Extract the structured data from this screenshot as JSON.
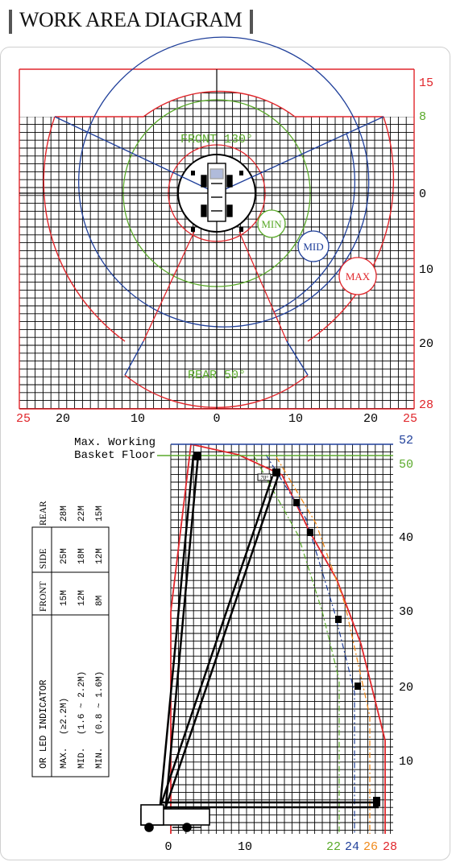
{
  "title": "WORK AREA DIAGRAM",
  "plan": {
    "right_scale": [
      "15",
      "8",
      "0",
      "10",
      "20",
      "28"
    ],
    "bottom_scale": [
      "25",
      "20",
      "10",
      "0",
      "10",
      "20",
      "25"
    ],
    "front_label": "FRONT 130°",
    "rear_label": "REAR 50°",
    "rings": [
      "MIN",
      "MID",
      "MAX"
    ]
  },
  "side": {
    "caption_line1": "Max. Working",
    "caption_line2": "Basket Floor",
    "right_scale": [
      "52",
      "50",
      "40",
      "30",
      "20",
      "10"
    ],
    "bottom_scale": [
      "0",
      "10",
      "22",
      "24",
      "26",
      "28"
    ],
    "angle_tag": "70°"
  },
  "table": {
    "header": [
      "OR LED INDICATOR",
      "FRONT",
      "SIDE",
      "REAR"
    ],
    "rows": [
      [
        "MAX.",
        "(≥2.2M)",
        "15M",
        "25M",
        "28M"
      ],
      [
        "MID.",
        "(1.6 ~ 2.2M)",
        "12M",
        "18M",
        "22M"
      ],
      [
        "MIN.",
        "(0.8 ~ 1.6M)",
        "8M",
        "12M",
        "15M"
      ]
    ]
  },
  "colors": {
    "max": "#e0262b",
    "mid": "#1f3f9a",
    "min": "#5aaa2a",
    "orange": "#f08a1c",
    "grid": "#000000"
  }
}
